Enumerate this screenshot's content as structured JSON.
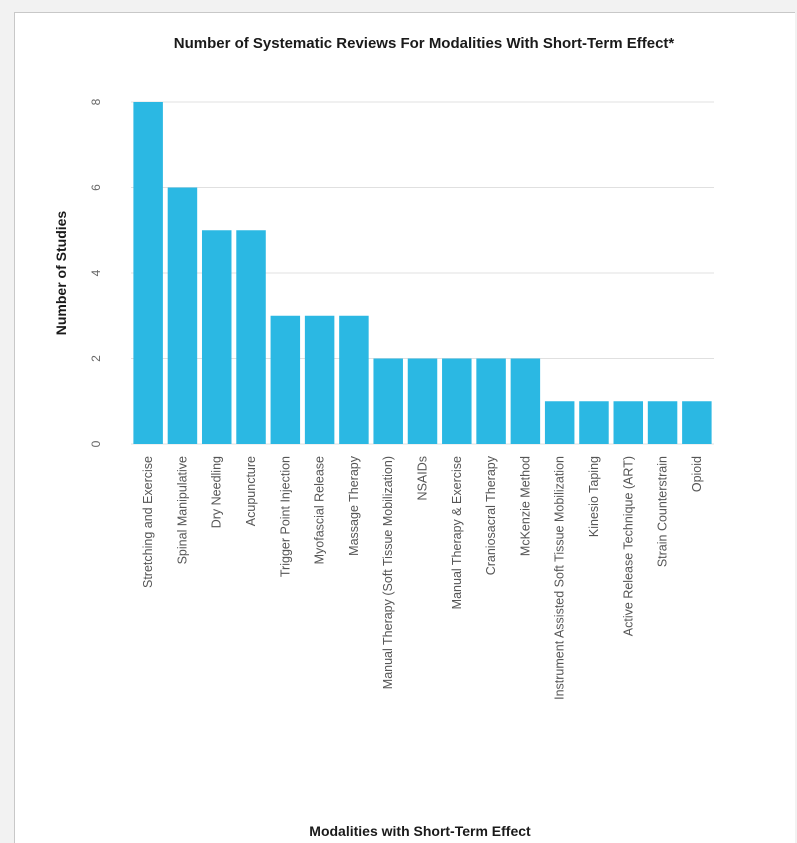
{
  "chart_data": {
    "type": "bar",
    "title": "Number of Systematic Reviews For Modalities With Short-Term Effect*",
    "xlabel": "Modalities with Short-Term Effect",
    "ylabel": "Number of Studies",
    "ylim": [
      0,
      8
    ],
    "yticks": [
      "0",
      "2",
      "4",
      "6",
      "8"
    ],
    "grid": true,
    "color": "#2bb8e3",
    "categories": [
      "Stretching and Exercise",
      "Spinal Manipulative",
      "Dry Needling",
      "Acupuncture",
      "Trigger Point Injection",
      "Myofascial Release",
      "Massage Therapy",
      "Manual Therapy (Soft Tissue Mobilization)",
      "NSAIDs",
      "Manual Therapy & Exercise",
      "Craniosacral Therapy",
      "McKenzie Method",
      "Instrument Assisted Soft Tissue Mobilization",
      "Kinesio Taping",
      "Active Release Technique (ART)",
      "Strain Counterstrain",
      "Opioid"
    ],
    "values": [
      8,
      6,
      5,
      5,
      3,
      3,
      3,
      2,
      2,
      2,
      2,
      2,
      1,
      1,
      1,
      1,
      1
    ]
  }
}
